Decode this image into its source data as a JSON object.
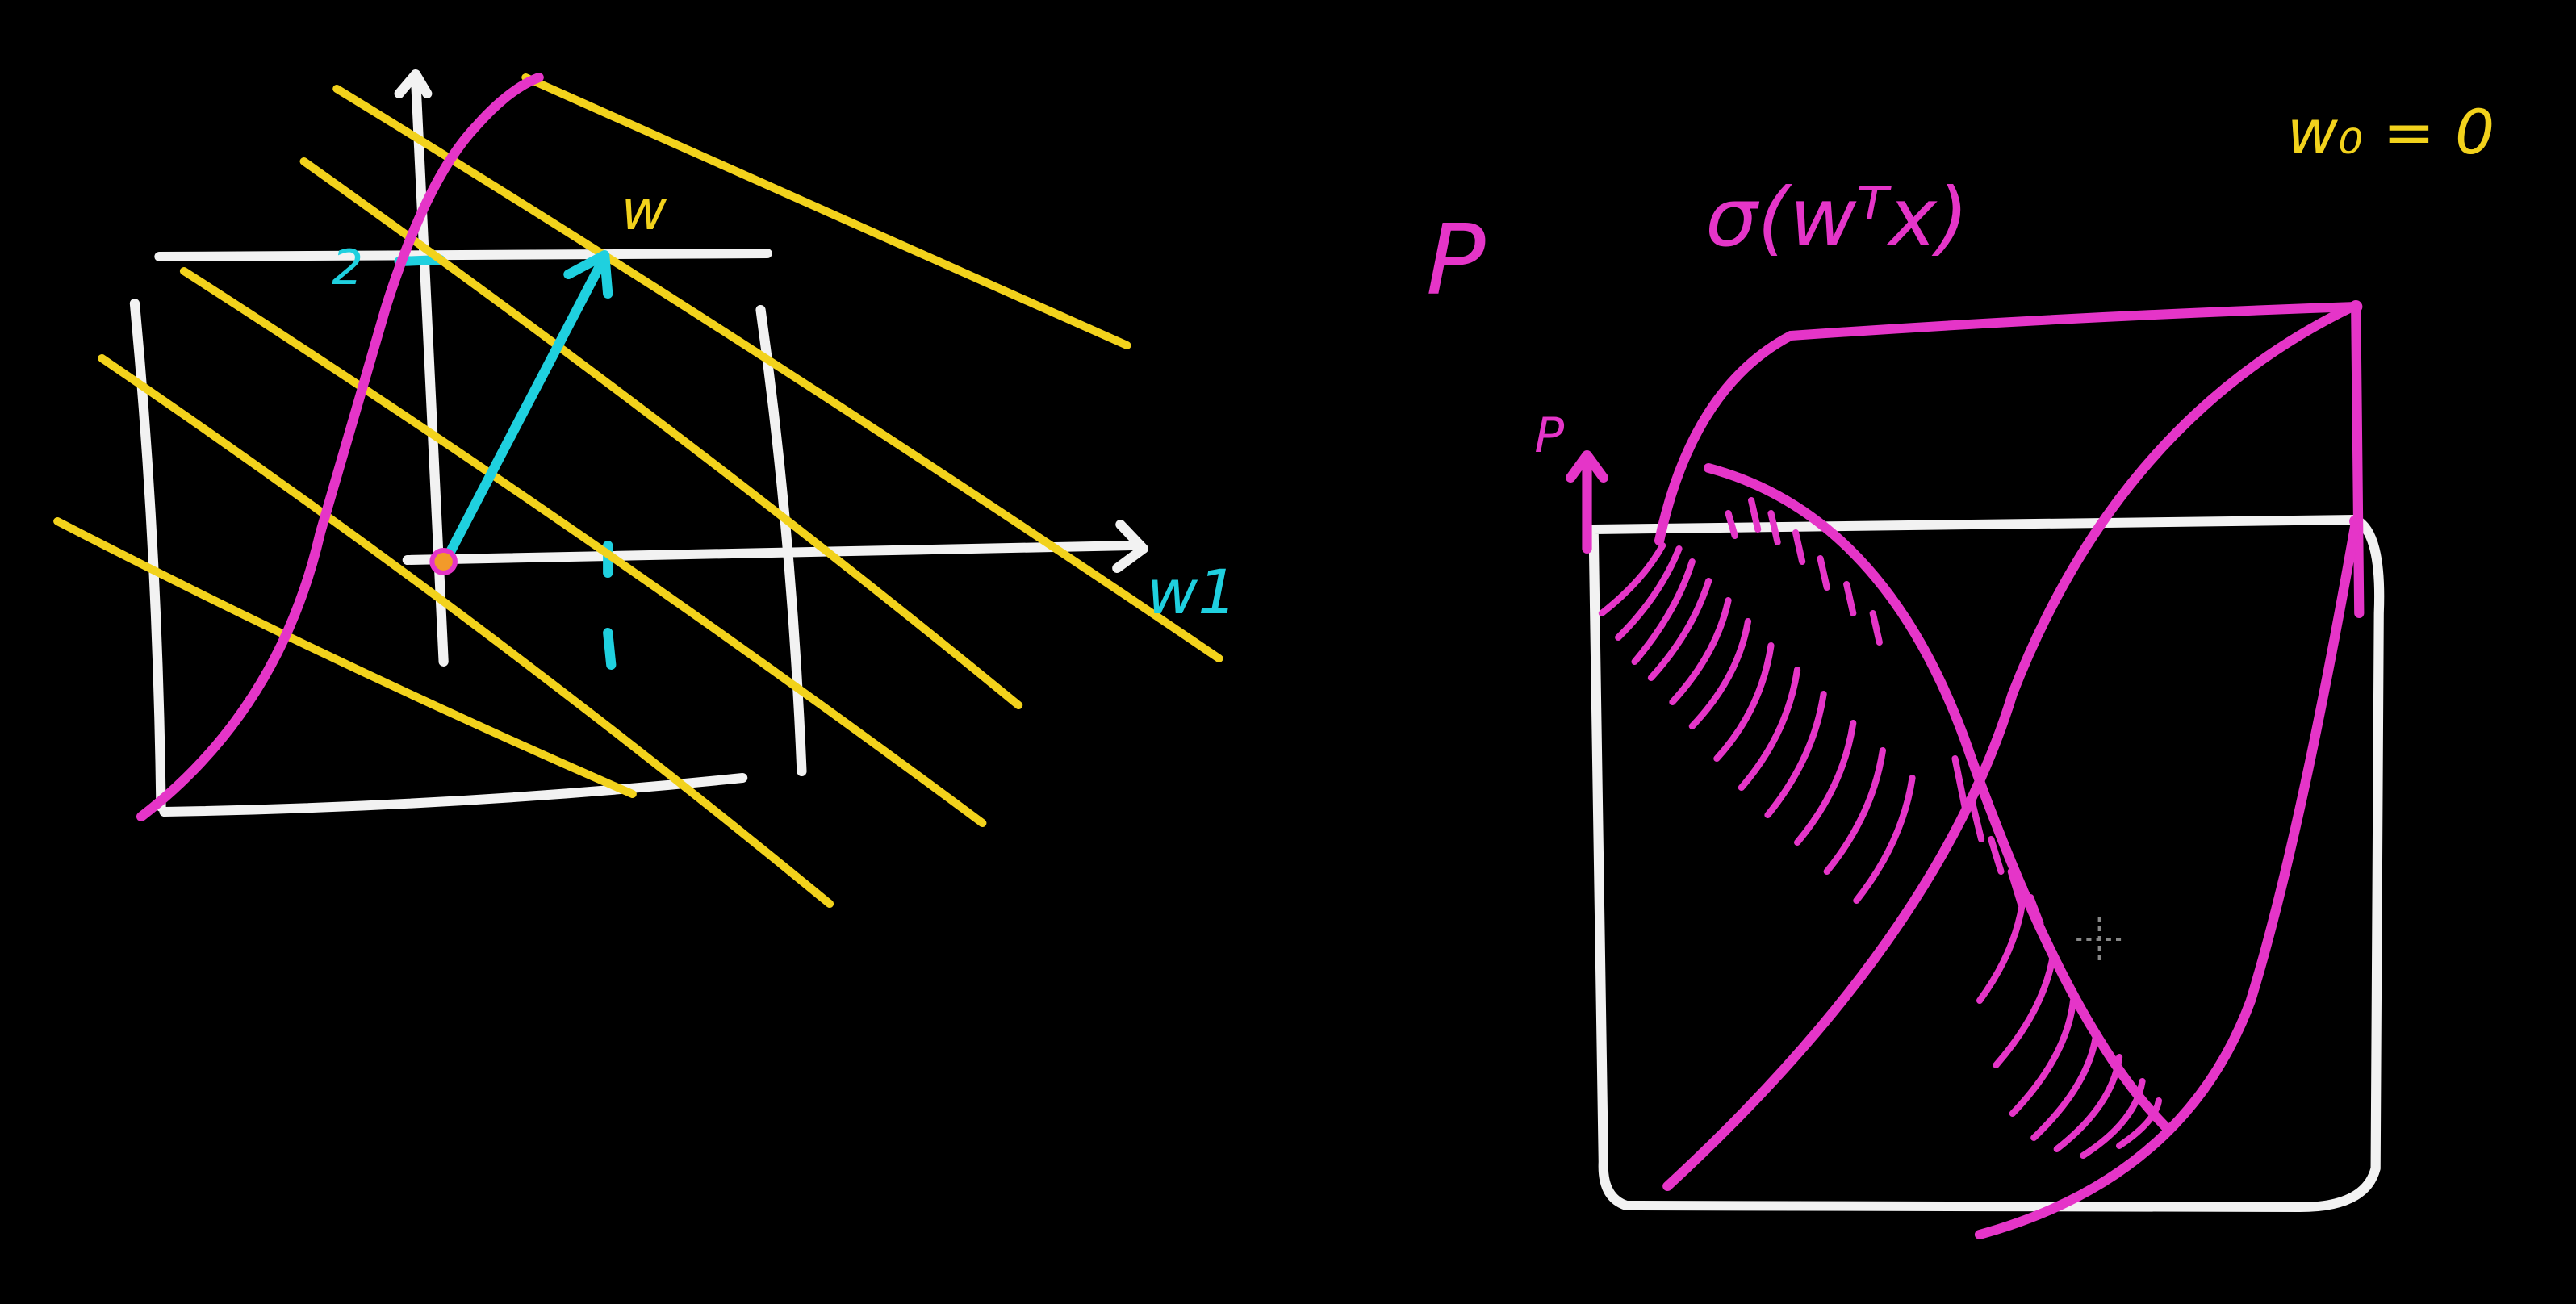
{
  "colors": {
    "background": "#000000",
    "white": "#f2f2f2",
    "yellow": "#f2d21c",
    "magenta": "#e535c8",
    "cyan": "#1fd0df"
  },
  "left_plot": {
    "w_label": "w",
    "tick_label": "2",
    "axis_label": "w1"
  },
  "right_plot": {
    "P_label": "P",
    "sigma_label": "σ(wᵀx)",
    "bias_label": "w₀ = 0",
    "axis_label": "P"
  }
}
